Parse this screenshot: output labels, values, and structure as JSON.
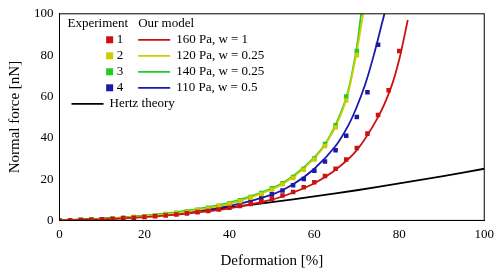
{
  "chart_data": {
    "type": "scatter",
    "x_label": "Deformation [%]",
    "y_label": "Normal force [nN]",
    "xlim": [
      0,
      100
    ],
    "xticks": [
      0,
      20,
      40,
      60,
      80,
      100
    ],
    "ylim": [
      0,
      100
    ],
    "yticks": [
      0,
      20,
      40,
      60,
      80,
      100
    ],
    "grid": false,
    "legend": "upper left",
    "series": [
      {
        "name": "1",
        "group": "Experiment",
        "type": "scatter",
        "marker": "square",
        "color": "#cc1111",
        "x": [
          0,
          2.5,
          5,
          7.5,
          10,
          12.5,
          15,
          17.5,
          20,
          22.5,
          25,
          27.5,
          30,
          32.5,
          35,
          37.5,
          40,
          42.5,
          45,
          47.5,
          50,
          52.5,
          55,
          57.5,
          60,
          62.5,
          65,
          67.5,
          70,
          72.5,
          75,
          77.5,
          80
        ],
        "values": [
          0,
          0.1,
          0.2,
          0.3,
          0.5,
          0.7,
          1,
          1.3,
          1.6,
          2,
          2.4,
          2.9,
          3.4,
          4,
          4.6,
          5.3,
          6.1,
          7,
          8,
          9.2,
          10.5,
          12,
          13.8,
          16,
          18.5,
          21.5,
          25,
          29.5,
          35,
          42,
          51,
          63,
          82
        ]
      },
      {
        "name": "2",
        "group": "Experiment",
        "type": "scatter",
        "marker": "square",
        "color": "#cccc00",
        "x": [
          0,
          2.5,
          5,
          7.5,
          10,
          12.5,
          15,
          17.5,
          20,
          22.5,
          25,
          27.5,
          30,
          32.5,
          35,
          37.5,
          40,
          42.5,
          45,
          47.5,
          50,
          52.5,
          55,
          57.5,
          60,
          62.5,
          65,
          67.5,
          70
        ],
        "values": [
          0,
          0.1,
          0.2,
          0.4,
          0.6,
          0.8,
          1.1,
          1.5,
          1.9,
          2.4,
          2.9,
          3.5,
          4.2,
          5,
          5.8,
          6.8,
          8,
          9.3,
          11,
          12.8,
          15,
          17.5,
          20.5,
          24.5,
          29.5,
          36,
          45,
          58,
          80
        ]
      },
      {
        "name": "3",
        "group": "Experiment",
        "type": "scatter",
        "marker": "square",
        "color": "#22cc22",
        "x": [
          0,
          2.5,
          5,
          7.5,
          10,
          12.5,
          15,
          17.5,
          20,
          22.5,
          25,
          27.5,
          30,
          32.5,
          35,
          37.5,
          40,
          42.5,
          45,
          47.5,
          50,
          52.5,
          55,
          57.5,
          60,
          62.5,
          65,
          67.5,
          70
        ],
        "values": [
          0,
          0.1,
          0.2,
          0.4,
          0.6,
          0.9,
          1.2,
          1.6,
          2,
          2.5,
          3.1,
          3.7,
          4.4,
          5.2,
          6.1,
          7.1,
          8.3,
          9.7,
          11.3,
          13.2,
          15.5,
          18,
          21,
          25,
          30,
          37,
          46,
          60,
          82
        ]
      },
      {
        "name": "4",
        "group": "Experiment",
        "type": "scatter",
        "marker": "square",
        "color": "#1a1aaa",
        "x": [
          0,
          2.5,
          5,
          7.5,
          10,
          12.5,
          15,
          17.5,
          20,
          22.5,
          25,
          27.5,
          30,
          32.5,
          35,
          37.5,
          40,
          42.5,
          45,
          47.5,
          50,
          52.5,
          55,
          57.5,
          60,
          62.5,
          65,
          67.5,
          70,
          72.5,
          75
        ],
        "values": [
          0,
          0.1,
          0.2,
          0.4,
          0.6,
          0.8,
          1.1,
          1.4,
          1.8,
          2.3,
          2.8,
          3.3,
          3.9,
          4.6,
          5.3,
          6.2,
          7.2,
          8.3,
          9.6,
          11,
          12.6,
          14.5,
          17,
          20,
          24,
          28.5,
          34,
          41,
          50,
          62,
          85
        ]
      },
      {
        "name": "160 Pa, w = 1",
        "group": "Our model",
        "type": "line",
        "line_style": "solid",
        "color": "#cc1111",
        "x": [
          0,
          10,
          20,
          30,
          40,
          50,
          55,
          60,
          65,
          70,
          75,
          78,
          80,
          82
        ],
        "values": [
          0,
          0.5,
          1.6,
          3.3,
          5.8,
          10,
          13.5,
          18,
          24.5,
          34,
          50,
          64,
          78,
          97
        ]
      },
      {
        "name": "120 Pa, w = 0.25",
        "group": "Our model",
        "type": "line",
        "line_style": "solid",
        "color": "#cccc00",
        "x": [
          0,
          10,
          20,
          30,
          40,
          50,
          55,
          60,
          63,
          66,
          68,
          70,
          71.5
        ],
        "values": [
          0,
          0.6,
          2,
          4.3,
          8,
          15,
          21,
          30,
          38,
          50,
          62,
          82,
          100
        ]
      },
      {
        "name": "140 Pa, w = 0.25",
        "group": "Our model",
        "type": "line",
        "line_style": "solid",
        "color": "#22cc22",
        "x": [
          0,
          10,
          20,
          30,
          40,
          50,
          55,
          60,
          63,
          66,
          68,
          70,
          71
        ],
        "values": [
          0,
          0.7,
          2.2,
          4.7,
          8.6,
          15.5,
          21.5,
          30.5,
          38.5,
          51,
          63,
          84,
          100
        ]
      },
      {
        "name": "110 Pa, w = 0.5",
        "group": "Our model",
        "type": "line",
        "line_style": "solid",
        "color": "#1a1aaa",
        "x": [
          0,
          10,
          20,
          30,
          40,
          50,
          55,
          60,
          65,
          68,
          70,
          72,
          74,
          76,
          76.5
        ],
        "values": [
          0,
          0.6,
          2,
          4,
          7,
          12.5,
          17.5,
          25,
          36,
          46,
          55,
          66,
          80,
          96,
          100
        ]
      },
      {
        "name": "Hertz theory",
        "type": "line",
        "line_style": "solid",
        "color": "#000000",
        "x": [
          0,
          10,
          20,
          30,
          40,
          50,
          60,
          70,
          80,
          90,
          100
        ],
        "values": [
          0,
          0.8,
          2.2,
          4.1,
          6.3,
          8.8,
          11.6,
          14.6,
          17.9,
          21.3,
          25
        ]
      }
    ]
  }
}
